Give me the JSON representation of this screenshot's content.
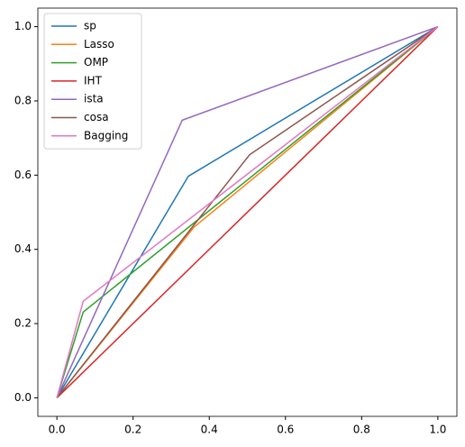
{
  "chart_data": {
    "type": "line",
    "series": [
      {
        "name": "sp",
        "color": "#1f77b4",
        "x": [
          0,
          0.345,
          1
        ],
        "values": [
          0,
          0.597,
          1
        ]
      },
      {
        "name": "Lasso",
        "color": "#ff7f0e",
        "x": [
          0,
          0.36,
          1
        ],
        "values": [
          0,
          0.46,
          1
        ]
      },
      {
        "name": "OMP",
        "color": "#2ca02c",
        "x": [
          0,
          0.069,
          1
        ],
        "values": [
          0,
          0.231,
          1
        ]
      },
      {
        "name": "IHT",
        "color": "#d62728",
        "x": [
          0,
          1
        ],
        "values": [
          0,
          1
        ]
      },
      {
        "name": "ista",
        "color": "#9467bd",
        "x": [
          0,
          0.329,
          1
        ],
        "values": [
          0,
          0.748,
          1
        ]
      },
      {
        "name": "cosa",
        "color": "#8c564b",
        "x": [
          0,
          0.506,
          1
        ],
        "values": [
          0,
          0.655,
          1
        ]
      },
      {
        "name": "Bagging",
        "color": "#e377c2",
        "x": [
          0,
          0.069,
          1
        ],
        "values": [
          0,
          0.26,
          1
        ]
      }
    ],
    "xlim": [
      -0.05,
      1.05
    ],
    "ylim": [
      -0.05,
      1.05
    ],
    "xticks": [
      {
        "value": 0,
        "label": "0.0"
      },
      0.2,
      0.4,
      0.6,
      0.8,
      {
        "value": 1,
        "label": "1.0"
      }
    ],
    "yticks": [
      {
        "value": 0,
        "label": "0.0"
      },
      0.2,
      0.4,
      0.6,
      0.8,
      {
        "value": 1,
        "label": "1.0"
      }
    ],
    "grid": false,
    "legend": "upper left"
  }
}
